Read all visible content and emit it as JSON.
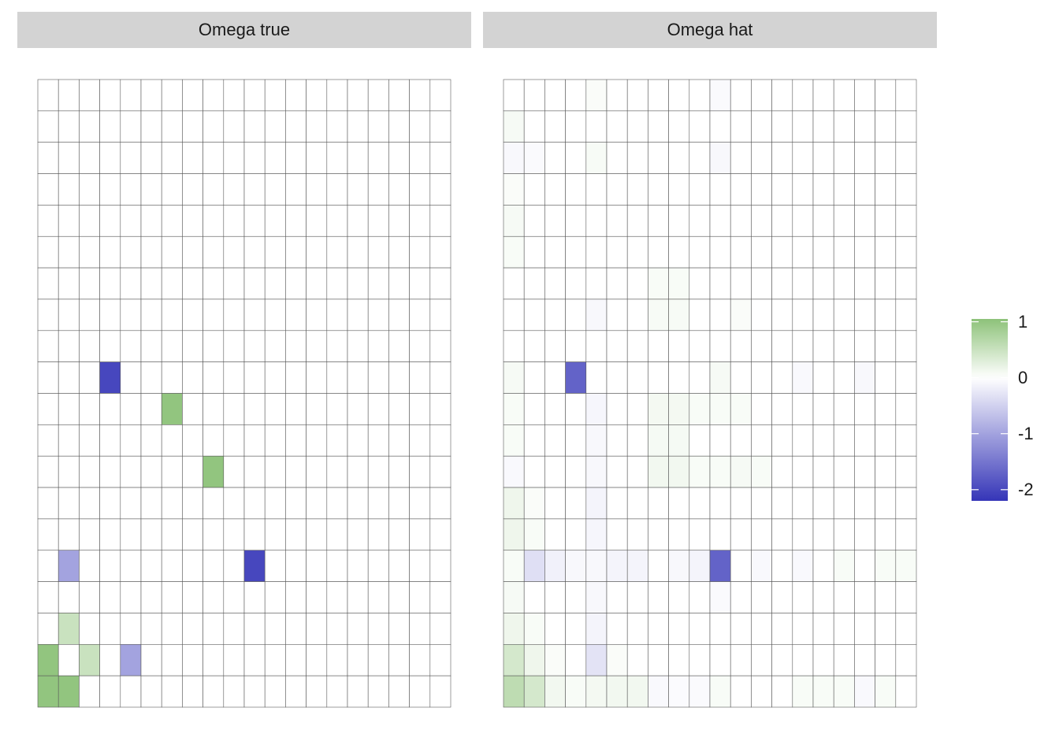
{
  "chart_data": {
    "type": "heatmap",
    "n_rows": 20,
    "n_cols": 20,
    "color_scale": {
      "low": "#3535b8",
      "mid": "#ffffff",
      "high": "#8dc279",
      "range": [
        -2.2,
        1.05
      ],
      "ticks": [
        {
          "value": 1,
          "label": "1"
        },
        {
          "value": 0,
          "label": "0"
        },
        {
          "value": -1,
          "label": "-1"
        },
        {
          "value": -2,
          "label": "-2"
        }
      ]
    },
    "panels": [
      {
        "title": "Omega true",
        "nonzero_cells": [
          {
            "row": 10,
            "col": 4,
            "value": -2.0
          },
          {
            "row": 11,
            "col": 7,
            "value": 1.0
          },
          {
            "row": 13,
            "col": 9,
            "value": 1.0
          },
          {
            "row": 16,
            "col": 2,
            "value": -1.0
          },
          {
            "row": 16,
            "col": 11,
            "value": -2.0
          },
          {
            "row": 18,
            "col": 2,
            "value": 0.5
          },
          {
            "row": 19,
            "col": 1,
            "value": 1.0
          },
          {
            "row": 19,
            "col": 3,
            "value": 0.5
          },
          {
            "row": 19,
            "col": 5,
            "value": -1.0
          },
          {
            "row": 20,
            "col": 1,
            "value": 1.0
          },
          {
            "row": 20,
            "col": 2,
            "value": 1.0
          }
        ]
      },
      {
        "title": "Omega hat",
        "nonzero_cells": [
          {
            "row": 1,
            "col": 5,
            "value": 0.05
          },
          {
            "row": 1,
            "col": 11,
            "value": -0.05
          },
          {
            "row": 2,
            "col": 1,
            "value": 0.08
          },
          {
            "row": 3,
            "col": 1,
            "value": -0.08
          },
          {
            "row": 3,
            "col": 2,
            "value": -0.05
          },
          {
            "row": 3,
            "col": 5,
            "value": 0.07
          },
          {
            "row": 3,
            "col": 11,
            "value": -0.08
          },
          {
            "row": 4,
            "col": 1,
            "value": 0.05
          },
          {
            "row": 5,
            "col": 1,
            "value": 0.08
          },
          {
            "row": 6,
            "col": 1,
            "value": 0.06
          },
          {
            "row": 7,
            "col": 8,
            "value": 0.06
          },
          {
            "row": 7,
            "col": 9,
            "value": 0.06
          },
          {
            "row": 8,
            "col": 5,
            "value": -0.08
          },
          {
            "row": 8,
            "col": 8,
            "value": 0.07
          },
          {
            "row": 8,
            "col": 9,
            "value": 0.07
          },
          {
            "row": 8,
            "col": 12,
            "value": 0.05
          },
          {
            "row": 10,
            "col": 1,
            "value": 0.08
          },
          {
            "row": 10,
            "col": 4,
            "value": -1.7
          },
          {
            "row": 10,
            "col": 11,
            "value": 0.08
          },
          {
            "row": 10,
            "col": 15,
            "value": -0.06
          },
          {
            "row": 10,
            "col": 18,
            "value": -0.08
          },
          {
            "row": 11,
            "col": 1,
            "value": 0.06
          },
          {
            "row": 11,
            "col": 5,
            "value": -0.1
          },
          {
            "row": 11,
            "col": 8,
            "value": 0.1
          },
          {
            "row": 11,
            "col": 9,
            "value": 0.1
          },
          {
            "row": 11,
            "col": 10,
            "value": 0.06
          },
          {
            "row": 11,
            "col": 11,
            "value": 0.06
          },
          {
            "row": 11,
            "col": 12,
            "value": 0.06
          },
          {
            "row": 12,
            "col": 1,
            "value": 0.06
          },
          {
            "row": 12,
            "col": 5,
            "value": -0.08
          },
          {
            "row": 12,
            "col": 8,
            "value": 0.09
          },
          {
            "row": 12,
            "col": 9,
            "value": 0.09
          },
          {
            "row": 13,
            "col": 1,
            "value": -0.06
          },
          {
            "row": 13,
            "col": 5,
            "value": -0.08
          },
          {
            "row": 13,
            "col": 8,
            "value": 0.12
          },
          {
            "row": 13,
            "col": 9,
            "value": 0.12
          },
          {
            "row": 13,
            "col": 10,
            "value": 0.06
          },
          {
            "row": 13,
            "col": 11,
            "value": 0.06
          },
          {
            "row": 13,
            "col": 12,
            "value": 0.08
          },
          {
            "row": 13,
            "col": 13,
            "value": 0.06
          },
          {
            "row": 14,
            "col": 1,
            "value": 0.15
          },
          {
            "row": 14,
            "col": 2,
            "value": 0.05
          },
          {
            "row": 14,
            "col": 5,
            "value": -0.12
          },
          {
            "row": 15,
            "col": 1,
            "value": 0.15
          },
          {
            "row": 15,
            "col": 2,
            "value": 0.06
          },
          {
            "row": 15,
            "col": 5,
            "value": -0.1
          },
          {
            "row": 16,
            "col": 1,
            "value": 0.06
          },
          {
            "row": 16,
            "col": 2,
            "value": -0.35
          },
          {
            "row": 16,
            "col": 3,
            "value": -0.15
          },
          {
            "row": 16,
            "col": 4,
            "value": -0.08
          },
          {
            "row": 16,
            "col": 5,
            "value": -0.08
          },
          {
            "row": 16,
            "col": 6,
            "value": -0.12
          },
          {
            "row": 16,
            "col": 7,
            "value": -0.12
          },
          {
            "row": 16,
            "col": 9,
            "value": -0.08
          },
          {
            "row": 16,
            "col": 10,
            "value": -0.12
          },
          {
            "row": 16,
            "col": 11,
            "value": -1.7
          },
          {
            "row": 16,
            "col": 13,
            "value": -0.06
          },
          {
            "row": 16,
            "col": 15,
            "value": -0.06
          },
          {
            "row": 16,
            "col": 17,
            "value": 0.06
          },
          {
            "row": 16,
            "col": 19,
            "value": 0.06
          },
          {
            "row": 16,
            "col": 20,
            "value": 0.06
          },
          {
            "row": 17,
            "col": 1,
            "value": 0.08
          },
          {
            "row": 17,
            "col": 5,
            "value": -0.08
          },
          {
            "row": 17,
            "col": 11,
            "value": -0.05
          },
          {
            "row": 18,
            "col": 1,
            "value": 0.15
          },
          {
            "row": 18,
            "col": 2,
            "value": 0.06
          },
          {
            "row": 18,
            "col": 5,
            "value": -0.12
          },
          {
            "row": 19,
            "col": 1,
            "value": 0.4
          },
          {
            "row": 19,
            "col": 2,
            "value": 0.15
          },
          {
            "row": 19,
            "col": 3,
            "value": 0.05
          },
          {
            "row": 19,
            "col": 5,
            "value": -0.3
          },
          {
            "row": 19,
            "col": 6,
            "value": 0.05
          },
          {
            "row": 20,
            "col": 1,
            "value": 0.6
          },
          {
            "row": 20,
            "col": 2,
            "value": 0.4
          },
          {
            "row": 20,
            "col": 3,
            "value": 0.12
          },
          {
            "row": 20,
            "col": 4,
            "value": 0.06
          },
          {
            "row": 20,
            "col": 5,
            "value": 0.1
          },
          {
            "row": 20,
            "col": 6,
            "value": 0.12
          },
          {
            "row": 20,
            "col": 7,
            "value": 0.12
          },
          {
            "row": 20,
            "col": 8,
            "value": -0.06
          },
          {
            "row": 20,
            "col": 9,
            "value": -0.04
          },
          {
            "row": 20,
            "col": 10,
            "value": -0.05
          },
          {
            "row": 20,
            "col": 11,
            "value": 0.06
          },
          {
            "row": 20,
            "col": 15,
            "value": 0.06
          },
          {
            "row": 20,
            "col": 16,
            "value": 0.06
          },
          {
            "row": 20,
            "col": 17,
            "value": 0.06
          },
          {
            "row": 20,
            "col": 18,
            "value": -0.06
          },
          {
            "row": 20,
            "col": 19,
            "value": 0.06
          }
        ]
      }
    ]
  }
}
